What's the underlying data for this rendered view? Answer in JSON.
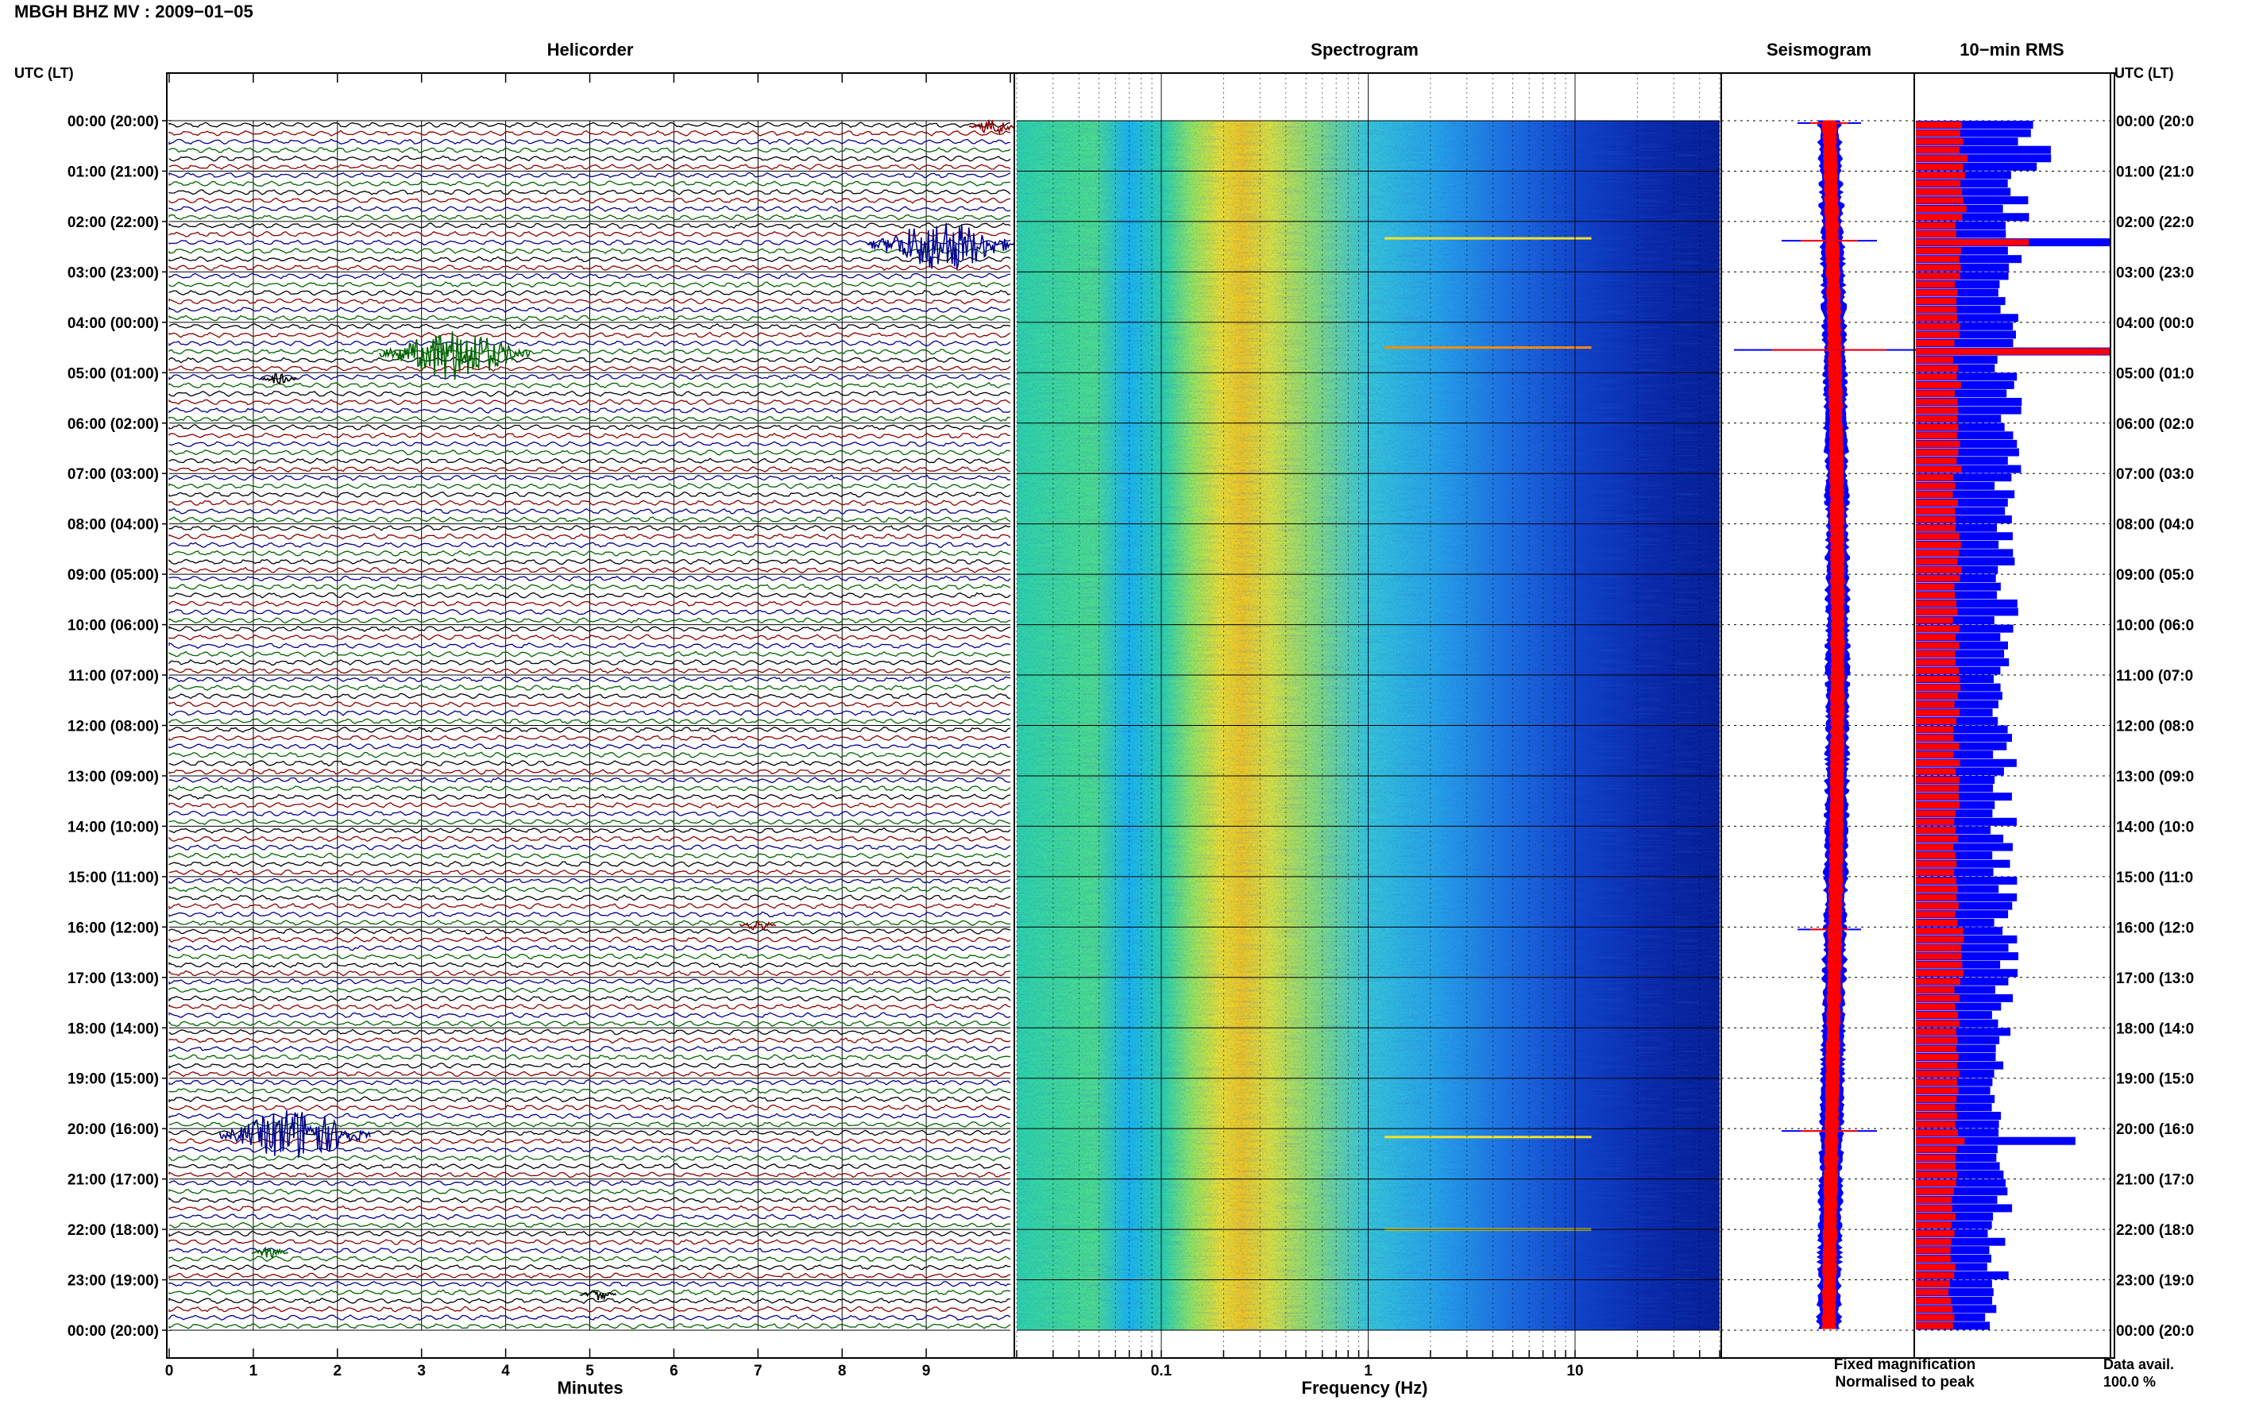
{
  "header": {
    "title": "MBGH BHZ MV : 2009−01−05"
  },
  "panels": {
    "helicorder": "Helicorder",
    "spectrogram": "Spectrogram",
    "seismogram": "Seismogram",
    "rms": "10−min RMS"
  },
  "time_label_left": "UTC (LT)",
  "time_label_right": "UTC (LT)",
  "time_ticks_left": [
    "00:00 (20:00)",
    "01:00 (21:00)",
    "02:00 (22:00)",
    "03:00 (23:00)",
    "04:00 (00:00)",
    "05:00 (01:00)",
    "06:00 (02:00)",
    "07:00 (03:00)",
    "08:00 (04:00)",
    "09:00 (05:00)",
    "10:00 (06:00)",
    "11:00 (07:00)",
    "12:00 (08:00)",
    "13:00 (09:00)",
    "14:00 (10:00)",
    "15:00 (11:00)",
    "16:00 (12:00)",
    "17:00 (13:00)",
    "18:00 (14:00)",
    "19:00 (15:00)",
    "20:00 (16:00)",
    "21:00 (17:00)",
    "22:00 (18:00)",
    "23:00 (19:00)",
    "00:00 (20:00)"
  ],
  "time_ticks_right": [
    "00:00 (20:0",
    "01:00 (21:0",
    "02:00 (22:0",
    "03:00 (23:0",
    "04:00 (00:0",
    "05:00 (01:0",
    "06:00 (02:0",
    "07:00 (03:0",
    "08:00 (04:0",
    "09:00 (05:0",
    "10:00 (06:0",
    "11:00 (07:0",
    "12:00 (08:0",
    "13:00 (09:0",
    "14:00 (10:0",
    "15:00 (11:0",
    "16:00 (12:0",
    "17:00 (13:0",
    "18:00 (14:0",
    "19:00 (15:0",
    "20:00 (16:0",
    "21:00 (17:0",
    "22:00 (18:0",
    "23:00 (19:0",
    "00:00 (20:0"
  ],
  "helicorder": {
    "xlabel": "Minutes",
    "xticks": [
      "0",
      "1",
      "2",
      "3",
      "4",
      "5",
      "6",
      "7",
      "8",
      "9"
    ],
    "trace_colors": [
      "#000000",
      "#8b0000",
      "#00008b",
      "#006400"
    ]
  },
  "spectrogram": {
    "xlabel": "Frequency (Hz)",
    "xticks": [
      "0.1",
      "1",
      "10"
    ]
  },
  "legend": {
    "fixed": "Fixed magnification",
    "normalised": "Normalised to peak",
    "fixed_color": "#0000ff",
    "normalised_color": "#ff0000"
  },
  "data_avail": {
    "label": "Data avail.",
    "value": "100.0 %"
  },
  "chart_data": [
    {
      "type": "line",
      "title": "Helicorder",
      "xlabel": "Minutes",
      "xlim": [
        0,
        10
      ],
      "rows_per_hour": 6,
      "events": [
        {
          "time_utc": "00:00",
          "minute": 9.8,
          "amplitude": "moderate"
        },
        {
          "time_utc": "02:20",
          "minute": 9.2,
          "amplitude": "large"
        },
        {
          "time_utc": "04:30",
          "minute": 3.4,
          "amplitude": "large"
        },
        {
          "time_utc": "05:00",
          "minute": 1.3,
          "amplitude": "small"
        },
        {
          "time_utc": "15:50",
          "minute": 7.0,
          "amplitude": "small"
        },
        {
          "time_utc": "20:00",
          "minute": 1.5,
          "amplitude": "large"
        },
        {
          "time_utc": "22:20",
          "minute": 1.2,
          "amplitude": "small"
        },
        {
          "time_utc": "23:10",
          "minute": 5.1,
          "amplitude": "small"
        }
      ]
    },
    {
      "type": "heatmap",
      "title": "Spectrogram",
      "xlabel": "Frequency (Hz)",
      "xscale": "log",
      "xlim": [
        0.02,
        50
      ],
      "peak_band_hz": [
        0.2,
        0.3
      ],
      "colormap": "jet"
    },
    {
      "type": "line",
      "title": "Seismogram",
      "series": [
        {
          "name": "Fixed magnification",
          "color": "#0000ff"
        },
        {
          "name": "Normalised to peak",
          "color": "#ff0000"
        }
      ],
      "spikes_utc": [
        "00:00",
        "02:20",
        "04:30",
        "16:00",
        "20:00"
      ]
    },
    {
      "type": "bar",
      "title": "10−min RMS",
      "orientation": "horizontal",
      "xlim": [
        0,
        1
      ],
      "series": [
        {
          "name": "Fixed magnification",
          "color": "#0000ff"
        },
        {
          "name": "Normalised to peak",
          "color": "#ff0000"
        }
      ],
      "hourly_fixed": [
        0.61,
        0.52,
        0.48,
        0.46,
        0.45,
        0.48,
        0.47,
        0.45,
        0.48,
        0.46,
        0.46,
        0.46,
        0.46,
        0.46,
        0.45,
        0.46,
        0.48,
        0.46,
        0.45,
        0.44,
        0.42,
        0.43,
        0.42,
        0.38
      ],
      "hourly_normalised": [
        0.25,
        0.24,
        0.22,
        0.21,
        0.21,
        0.22,
        0.22,
        0.21,
        0.22,
        0.21,
        0.22,
        0.21,
        0.21,
        0.21,
        0.21,
        0.21,
        0.23,
        0.21,
        0.21,
        0.2,
        0.2,
        0.2,
        0.19,
        0.18
      ],
      "peaks": [
        {
          "time_utc": "02:20",
          "fixed": 1.0,
          "normalised": 0.58
        },
        {
          "time_utc": "04:30",
          "fixed": 1.0,
          "normalised": 1.0
        },
        {
          "time_utc": "20:10",
          "fixed": 0.82,
          "normalised": 0.25
        }
      ]
    }
  ]
}
